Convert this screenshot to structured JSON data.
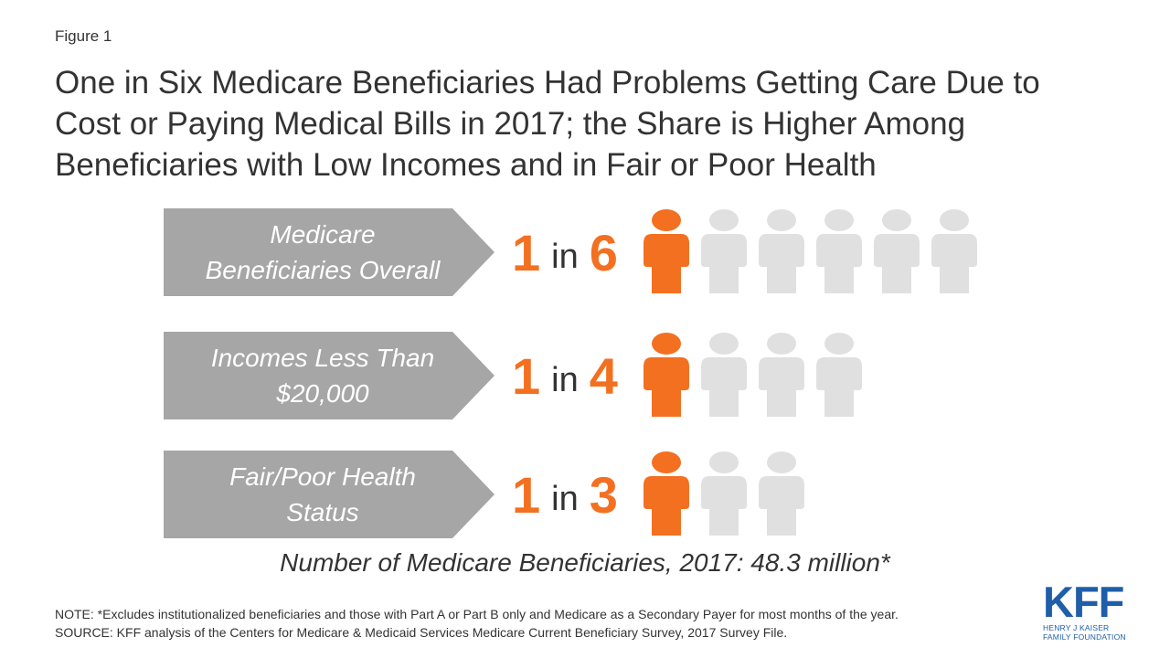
{
  "figure_label": "Figure 1",
  "title": {
    "line1": "One in Six Medicare Beneficiaries Had Problems Getting Care Due to",
    "line2": "Cost or Paying Medical Bills in 2017; the Share is Higher Among",
    "line3": "Beneficiaries with Low Incomes and in Fair or Poor Health"
  },
  "colors": {
    "highlight": "#f37021",
    "person_gray": "#e0e0e0",
    "arrow_gray": "#a6a6a6",
    "logo_blue": "#1f5ea8"
  },
  "icon": "person-icon",
  "chart_data": {
    "type": "pictograph",
    "title": "One in Six Medicare Beneficiaries Had Problems Getting Care Due to Cost or Paying Medical Bills in 2017; the Share is Higher Among Beneficiaries with Low Incomes and in Fair or Poor Health",
    "rows": [
      {
        "label_line1": "Medicare",
        "label_line2": "Beneficiaries Overall",
        "numerator": "1",
        "connector": "in",
        "denominator": "6",
        "highlighted": 1,
        "total": 6
      },
      {
        "label_line1": "Incomes Less Than",
        "label_line2": "$20,000",
        "numerator": "1",
        "connector": "in",
        "denominator": "4",
        "highlighted": 1,
        "total": 4
      },
      {
        "label_line1": "Fair/Poor Health",
        "label_line2": "Status",
        "numerator": "1",
        "connector": "in",
        "denominator": "3",
        "highlighted": 1,
        "total": 3
      }
    ]
  },
  "total_note": "Number of Medicare Beneficiaries, 2017: 48.3 million*",
  "note": "NOTE: *Excludes institutionalized beneficiaries and those with Part A or Part B only and Medicare as a Secondary Payer for most months of the year.",
  "source": "SOURCE: KFF analysis of the Centers for Medicare & Medicaid Services Medicare Current Beneficiary Survey, 2017 Survey File.",
  "logo": {
    "mark": "KFF",
    "line1": "HENRY J KAISER",
    "line2": "FAMILY FOUNDATION"
  }
}
